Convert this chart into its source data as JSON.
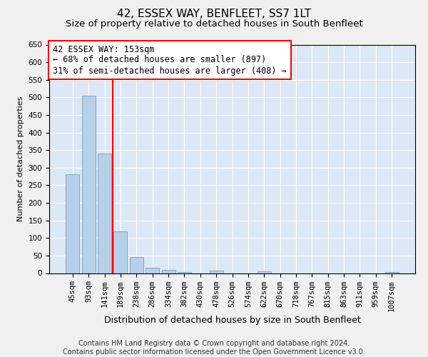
{
  "title": "42, ESSEX WAY, BENFLEET, SS7 1LT",
  "subtitle": "Size of property relative to detached houses in South Benfleet",
  "xlabel": "Distribution of detached houses by size in South Benfleet",
  "ylabel": "Number of detached properties",
  "bar_color": "#b8cfe8",
  "bar_edge_color": "#7aaad0",
  "background_color": "#dce8f5",
  "grid_color": "#ffffff",
  "categories": [
    "45sqm",
    "93sqm",
    "141sqm",
    "189sqm",
    "238sqm",
    "286sqm",
    "334sqm",
    "382sqm",
    "430sqm",
    "478sqm",
    "526sqm",
    "574sqm",
    "622sqm",
    "670sqm",
    "718sqm",
    "767sqm",
    "815sqm",
    "863sqm",
    "911sqm",
    "959sqm",
    "1007sqm"
  ],
  "values": [
    282,
    505,
    340,
    118,
    46,
    16,
    10,
    3,
    0,
    8,
    0,
    0,
    5,
    0,
    0,
    0,
    0,
    0,
    0,
    0,
    3
  ],
  "ylim": [
    0,
    650
  ],
  "yticks": [
    0,
    50,
    100,
    150,
    200,
    250,
    300,
    350,
    400,
    450,
    500,
    550,
    600,
    650
  ],
  "red_line_index": 2,
  "annotation_line1": "42 ESSEX WAY: 153sqm",
  "annotation_line2": "← 68% of detached houses are smaller (897)",
  "annotation_line3": "31% of semi-detached houses are larger (408) →",
  "footer": "Contains HM Land Registry data © Crown copyright and database right 2024.\nContains public sector information licensed under the Open Government Licence v3.0.",
  "title_fontsize": 11,
  "subtitle_fontsize": 9.5,
  "annotation_fontsize": 8.5,
  "footer_fontsize": 7,
  "ylabel_fontsize": 8,
  "xlabel_fontsize": 9,
  "tick_fontsize": 7.5
}
